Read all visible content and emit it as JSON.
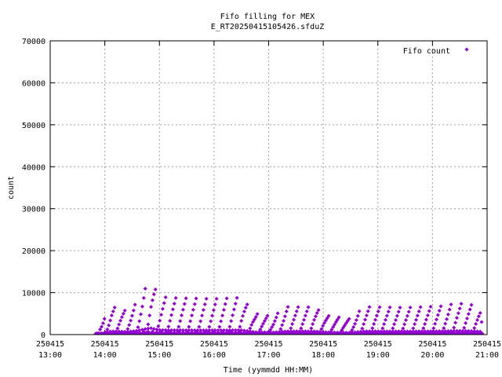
{
  "chart_data": {
    "type": "scatter",
    "title_lines": [
      "Fifo filling for MEX",
      "E_RT20250415105426.sfduZ"
    ],
    "xlabel": "Time (yymmdd HH:MM)",
    "ylabel": "count",
    "xlim": [
      "2025-04-15 13:00",
      "2025-04-15 21:00"
    ],
    "ylim": [
      0,
      70000
    ],
    "y_ticks": [
      "0",
      "10000",
      "20000",
      "30000",
      "40000",
      "50000",
      "60000",
      "70000"
    ],
    "x_ticks": [
      {
        "date": "250415",
        "time": "13:00"
      },
      {
        "date": "250415",
        "time": "14:00"
      },
      {
        "date": "250415",
        "time": "15:00"
      },
      {
        "date": "250415",
        "time": "16:00"
      },
      {
        "date": "250415",
        "time": "17:00"
      },
      {
        "date": "250415",
        "time": "18:00"
      },
      {
        "date": "250415",
        "time": "19:00"
      },
      {
        "date": "250415",
        "time": "20:00"
      },
      {
        "date": "250415",
        "time": "21:00"
      }
    ],
    "grid": true,
    "legend": "top-right",
    "series": [
      {
        "name": "Fifo count",
        "color": "#9400d3",
        "marker": "diamond",
        "envelope_max": [
          {
            "time": "2025-04-15 13:50",
            "count": 100
          },
          {
            "time": "2025-04-15 14:07",
            "count": 6600
          },
          {
            "time": "2025-04-15 14:15",
            "count": 6300
          },
          {
            "time": "2025-04-15 14:25",
            "count": 5500
          },
          {
            "time": "2025-04-15 14:35",
            "count": 7500
          },
          {
            "time": "2025-04-15 14:50",
            "count": 13000
          },
          {
            "time": "2025-04-15 15:00",
            "count": 9000
          },
          {
            "time": "2025-04-15 15:20",
            "count": 8700
          },
          {
            "time": "2025-04-15 16:00",
            "count": 8500
          },
          {
            "time": "2025-04-15 16:30",
            "count": 8800
          },
          {
            "time": "2025-04-15 16:45",
            "count": 5000
          },
          {
            "time": "2025-04-15 17:05",
            "count": 4300
          },
          {
            "time": "2025-04-15 17:20",
            "count": 6600
          },
          {
            "time": "2025-04-15 17:50",
            "count": 6500
          },
          {
            "time": "2025-04-15 18:05",
            "count": 4500
          },
          {
            "time": "2025-04-15 18:15",
            "count": 4200
          },
          {
            "time": "2025-04-15 18:30",
            "count": 3700
          },
          {
            "time": "2025-04-15 18:45",
            "count": 6600
          },
          {
            "time": "2025-04-15 19:30",
            "count": 6400
          },
          {
            "time": "2025-04-15 20:15",
            "count": 6800
          },
          {
            "time": "2025-04-15 20:25",
            "count": 7500
          },
          {
            "time": "2025-04-15 20:45",
            "count": 7000
          },
          {
            "time": "2025-04-15 20:53",
            "count": 6000
          },
          {
            "time": "2025-04-15 20:55",
            "count": 0
          }
        ]
      }
    ]
  }
}
